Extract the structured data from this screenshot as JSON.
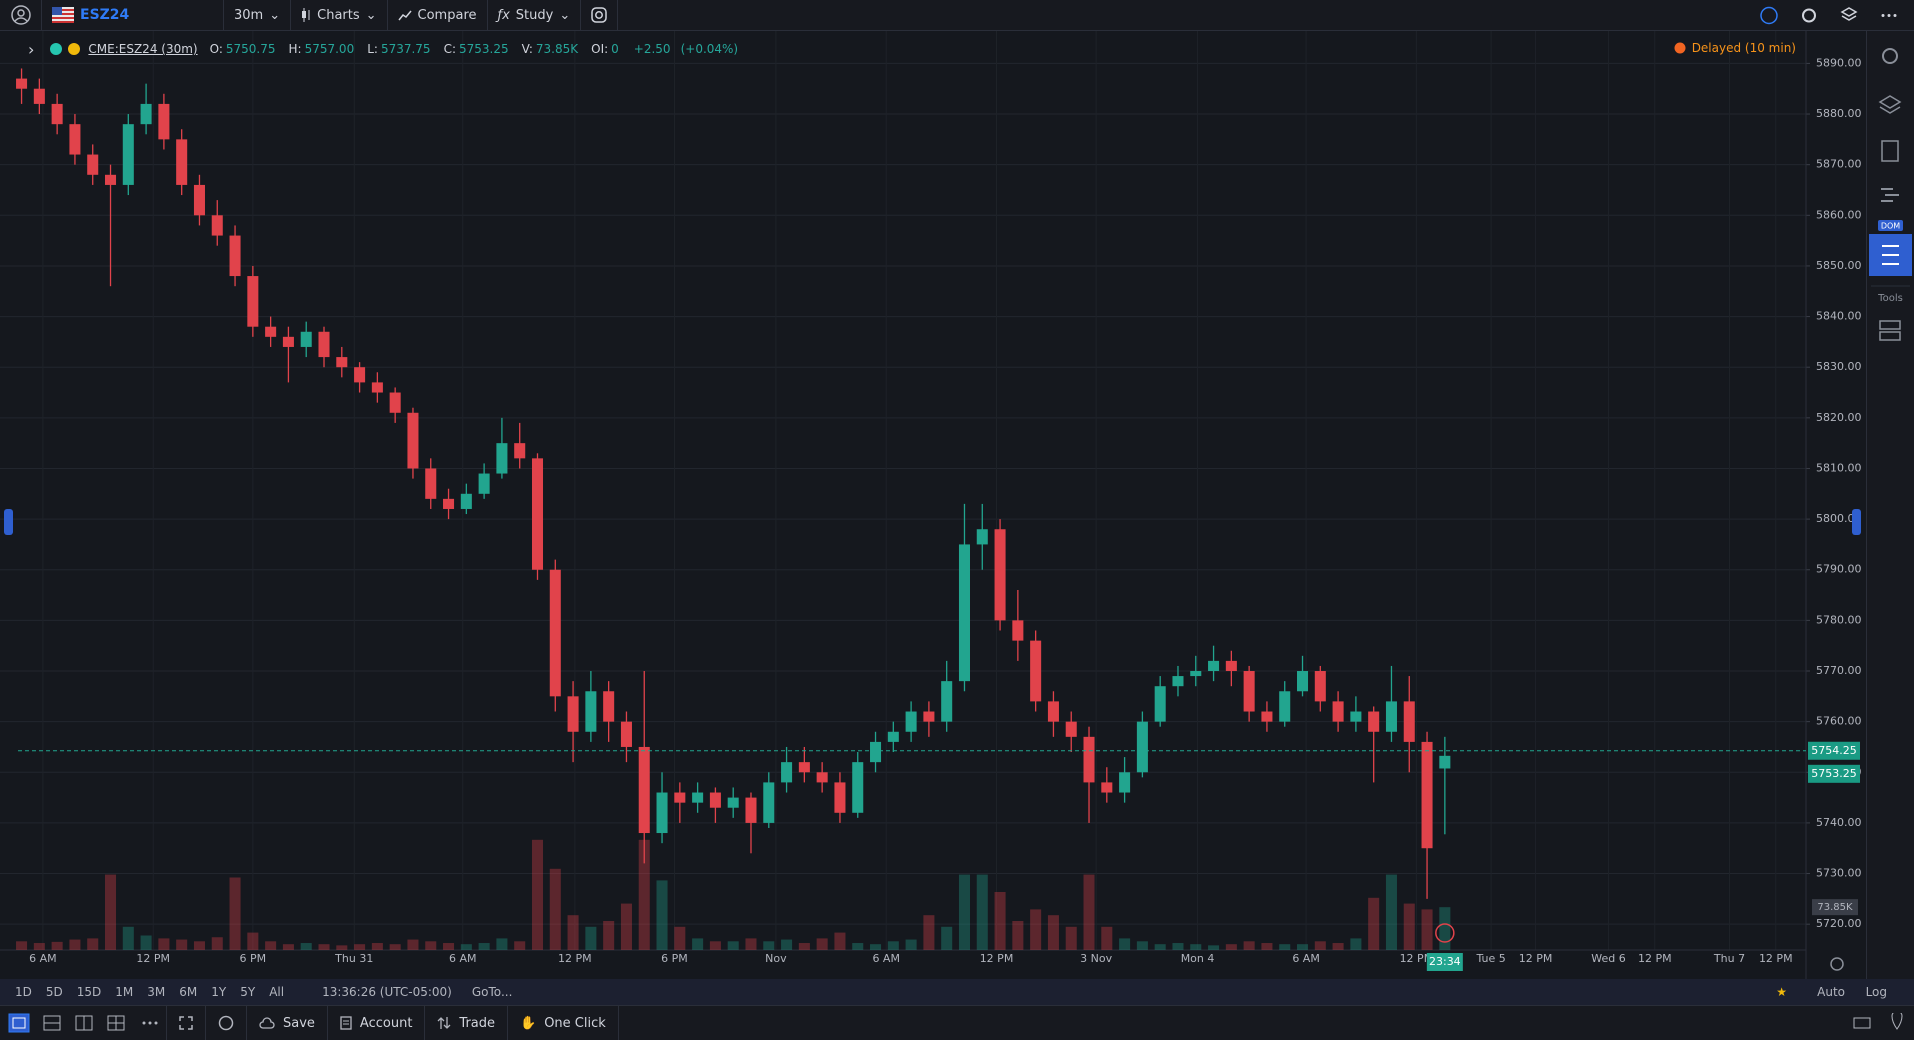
{
  "toolbar": {
    "symbol": "ESZ24",
    "interval": "30m",
    "items": [
      "Charts",
      "Compare",
      "Study"
    ]
  },
  "legend": {
    "symbol": "CME:ESZ24 (30m)",
    "fields": [
      {
        "label": "O:",
        "value": "5750.75"
      },
      {
        "label": "H:",
        "value": "5757.00"
      },
      {
        "label": "L:",
        "value": "5737.75"
      },
      {
        "label": "C:",
        "value": "5753.25"
      },
      {
        "label": "V:",
        "value": "73.85K"
      },
      {
        "label": "OI:",
        "value": "0"
      }
    ],
    "change": "+2.50",
    "change_pct": "(+0.04%)",
    "status": "Delayed (10 min)"
  },
  "chart_data": {
    "type": "candlestick",
    "up_color": "#22a58f",
    "down_color": "#e1434b",
    "ohlc": [
      [
        5887,
        5889,
        5882,
        5885
      ],
      [
        5885,
        5887,
        5880,
        5882
      ],
      [
        5882,
        5884,
        5876,
        5878
      ],
      [
        5878,
        5880,
        5870,
        5872
      ],
      [
        5872,
        5874,
        5866,
        5868
      ],
      [
        5868,
        5870,
        5846,
        5866
      ],
      [
        5866,
        5880,
        5864,
        5878
      ],
      [
        5878,
        5886,
        5876,
        5882
      ],
      [
        5882,
        5884,
        5873,
        5875
      ],
      [
        5875,
        5877,
        5864,
        5866
      ],
      [
        5866,
        5868,
        5858,
        5860
      ],
      [
        5860,
        5863,
        5854,
        5856
      ],
      [
        5856,
        5858,
        5846,
        5848
      ],
      [
        5848,
        5850,
        5836,
        5838
      ],
      [
        5838,
        5840,
        5834,
        5836
      ],
      [
        5836,
        5838,
        5827,
        5834
      ],
      [
        5834,
        5839,
        5832,
        5837
      ],
      [
        5837,
        5838,
        5830,
        5832
      ],
      [
        5832,
        5834,
        5828,
        5830
      ],
      [
        5830,
        5831,
        5825,
        5827
      ],
      [
        5827,
        5829,
        5823,
        5825
      ],
      [
        5825,
        5826,
        5819,
        5821
      ],
      [
        5821,
        5822,
        5808,
        5810
      ],
      [
        5810,
        5812,
        5802,
        5804
      ],
      [
        5804,
        5806,
        5800,
        5802
      ],
      [
        5802,
        5807,
        5801,
        5805
      ],
      [
        5805,
        5811,
        5804,
        5809
      ],
      [
        5809,
        5820,
        5808,
        5815
      ],
      [
        5815,
        5819,
        5810,
        5812
      ],
      [
        5812,
        5813,
        5788,
        5790
      ],
      [
        5790,
        5792,
        5762,
        5765
      ],
      [
        5765,
        5768,
        5752,
        5758
      ],
      [
        5758,
        5770,
        5756,
        5766
      ],
      [
        5766,
        5768,
        5756,
        5760
      ],
      [
        5760,
        5762,
        5752,
        5755
      ],
      [
        5755,
        5770,
        5732,
        5738
      ],
      [
        5738,
        5750,
        5736,
        5746
      ],
      [
        5746,
        5748,
        5740,
        5744
      ],
      [
        5744,
        5748,
        5742,
        5746
      ],
      [
        5746,
        5747,
        5740,
        5743
      ],
      [
        5743,
        5747,
        5741,
        5745
      ],
      [
        5745,
        5746,
        5734,
        5740
      ],
      [
        5740,
        5750,
        5739,
        5748
      ],
      [
        5748,
        5755,
        5746,
        5752
      ],
      [
        5752,
        5755,
        5748,
        5750
      ],
      [
        5750,
        5752,
        5746,
        5748
      ],
      [
        5748,
        5750,
        5740,
        5742
      ],
      [
        5742,
        5754,
        5741,
        5752
      ],
      [
        5752,
        5758,
        5750,
        5756
      ],
      [
        5756,
        5760,
        5754,
        5758
      ],
      [
        5758,
        5764,
        5756,
        5762
      ],
      [
        5762,
        5764,
        5757,
        5760
      ],
      [
        5760,
        5772,
        5758,
        5768
      ],
      [
        5768,
        5803,
        5766,
        5795
      ],
      [
        5795,
        5803,
        5790,
        5798
      ],
      [
        5798,
        5800,
        5778,
        5780
      ],
      [
        5780,
        5786,
        5772,
        5776
      ],
      [
        5776,
        5778,
        5762,
        5764
      ],
      [
        5764,
        5766,
        5757,
        5760
      ],
      [
        5760,
        5762,
        5754,
        5757
      ],
      [
        5757,
        5759,
        5740,
        5748
      ],
      [
        5748,
        5751,
        5744,
        5746
      ],
      [
        5746,
        5753,
        5744,
        5750
      ],
      [
        5750,
        5762,
        5749,
        5760
      ],
      [
        5760,
        5769,
        5759,
        5767
      ],
      [
        5767,
        5771,
        5765,
        5769
      ],
      [
        5769,
        5773,
        5767,
        5770
      ],
      [
        5770,
        5775,
        5768,
        5772
      ],
      [
        5772,
        5774,
        5767,
        5770
      ],
      [
        5770,
        5771,
        5760,
        5762
      ],
      [
        5762,
        5764,
        5758,
        5760
      ],
      [
        5760,
        5768,
        5759,
        5766
      ],
      [
        5766,
        5773,
        5765,
        5770
      ],
      [
        5770,
        5771,
        5762,
        5764
      ],
      [
        5764,
        5766,
        5758,
        5760
      ],
      [
        5760,
        5765,
        5758,
        5762
      ],
      [
        5762,
        5763,
        5748,
        5758
      ],
      [
        5758,
        5771,
        5756,
        5764
      ],
      [
        5764,
        5769,
        5750,
        5756
      ],
      [
        5756,
        5758,
        5725,
        5735
      ],
      [
        5750.75,
        5757,
        5737.75,
        5753.25
      ]
    ],
    "volume": {
      "values": [
        15,
        12,
        14,
        18,
        20,
        130,
        40,
        25,
        20,
        18,
        15,
        22,
        125,
        30,
        15,
        10,
        12,
        10,
        8,
        10,
        12,
        10,
        18,
        15,
        12,
        10,
        12,
        20,
        15,
        190,
        140,
        60,
        40,
        50,
        80,
        190,
        120,
        40,
        20,
        15,
        15,
        20,
        15,
        18,
        12,
        20,
        30,
        12,
        10,
        15,
        18,
        60,
        40,
        130,
        130,
        100,
        50,
        70,
        60,
        40,
        130,
        40,
        20,
        15,
        10,
        12,
        10,
        8,
        10,
        15,
        12,
        10,
        10,
        15,
        12,
        20,
        90,
        130,
        80,
        70,
        73.85
      ],
      "vlim": [
        0,
        200
      ],
      "last_label": "73.85K"
    },
    "price_labels": [
      5754.25,
      5753.25
    ],
    "countdown": "23:34",
    "ylim": [
      5714.9,
      5896.4
    ],
    "yticks": [
      {
        "value": 5720,
        "label": "5720.00"
      },
      {
        "value": 5730,
        "label": "5730.00"
      },
      {
        "value": 5740,
        "label": "5740.00"
      },
      {
        "value": 5750,
        "label": "5750.00"
      },
      {
        "value": 5760,
        "label": "5760.00"
      },
      {
        "value": 5770,
        "label": "5770.00"
      },
      {
        "value": 5780,
        "label": "5780.00"
      },
      {
        "value": 5790,
        "label": "5790.00"
      },
      {
        "value": 5800,
        "label": "5800.00"
      },
      {
        "value": 5810,
        "label": "5810.00"
      },
      {
        "value": 5820,
        "label": "5820.00"
      },
      {
        "value": 5830,
        "label": "5830.00"
      },
      {
        "value": 5840,
        "label": "5840.00"
      },
      {
        "value": 5850,
        "label": "5850.00"
      },
      {
        "value": 5860,
        "label": "5860.00"
      },
      {
        "value": 5870,
        "label": "5870.00"
      },
      {
        "value": 5880,
        "label": "5880.00"
      },
      {
        "value": 5890,
        "label": "5890.00"
      }
    ],
    "xlim": [
      -0.2,
      100.3
    ],
    "xticks": [
      {
        "value": 1.2,
        "label": "6 AM"
      },
      {
        "value": 7.4,
        "label": "12 PM"
      },
      {
        "value": 13.0,
        "label": "6 PM"
      },
      {
        "value": 18.7,
        "label": "Thu 31"
      },
      {
        "value": 24.8,
        "label": "6 AM"
      },
      {
        "value": 31.1,
        "label": "12 PM"
      },
      {
        "value": 36.7,
        "label": "6 PM"
      },
      {
        "value": 42.4,
        "label": "Nov"
      },
      {
        "value": 48.6,
        "label": "6 AM"
      },
      {
        "value": 54.8,
        "label": "12 PM"
      },
      {
        "value": 60.4,
        "label": "3 Nov"
      },
      {
        "value": 66.1,
        "label": "Mon 4"
      },
      {
        "value": 72.2,
        "label": "6 AM"
      },
      {
        "value": 78.4,
        "label": "12 PM"
      },
      {
        "value": 82.6,
        "label": "Tue 5"
      },
      {
        "value": 85.1,
        "label": "12 PM"
      },
      {
        "value": 89.2,
        "label": "Wed 6"
      },
      {
        "value": 91.8,
        "label": "12 PM"
      },
      {
        "value": 96.0,
        "label": "Thu 7"
      },
      {
        "value": 98.6,
        "label": "12 PM"
      }
    ],
    "grid": true
  },
  "sidebar": {
    "dom": "DOM",
    "tools": "Tools"
  },
  "range_bar": {
    "ranges": [
      "1D",
      "5D",
      "15D",
      "1M",
      "3M",
      "6M",
      "1Y",
      "5Y",
      "All"
    ],
    "clock": "13:36:26 (UTC-05:00)",
    "goto": "GoTo...",
    "scale": [
      "Auto",
      "Log"
    ]
  },
  "bottom_bar": {
    "items": [
      "Save",
      "Account",
      "Trade",
      "One Click"
    ]
  }
}
